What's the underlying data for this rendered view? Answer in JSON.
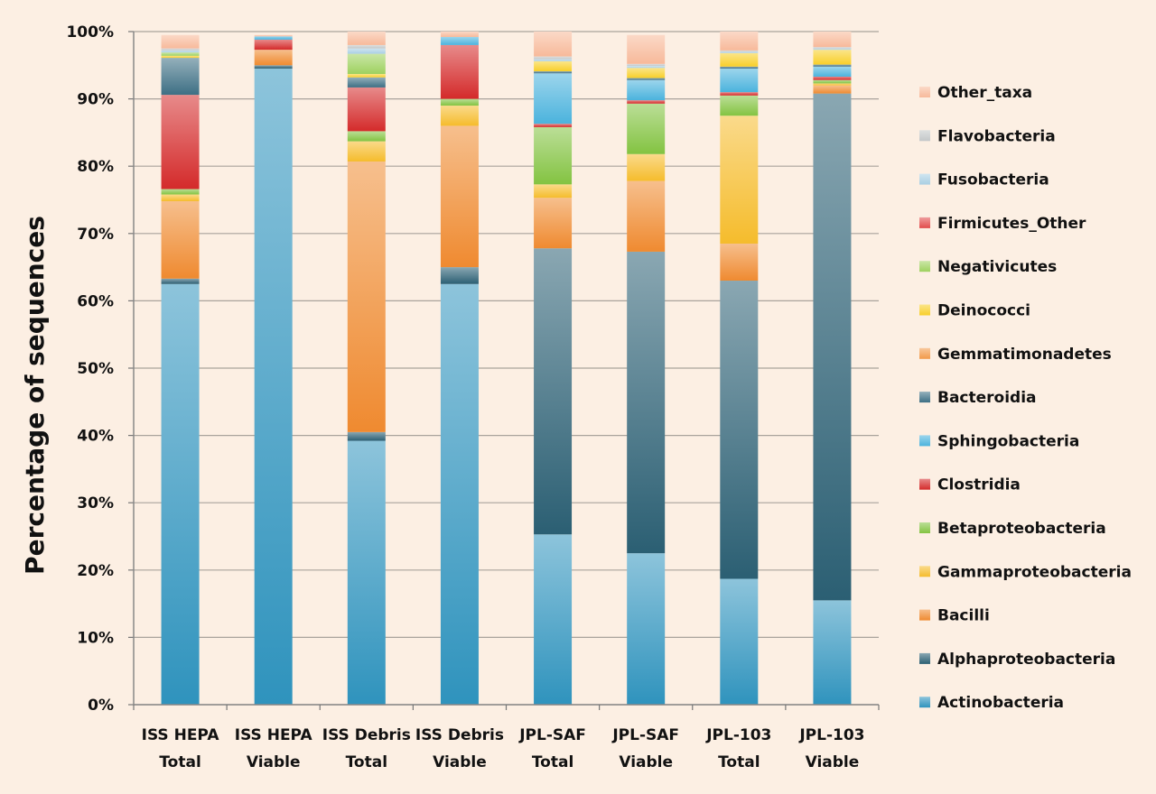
{
  "chart_data": {
    "type": "bar",
    "stacked": true,
    "ylabel": "Percentage of sequences",
    "ylim": [
      0,
      100
    ],
    "y_ticks": [
      "0%",
      "10%",
      "20%",
      "30%",
      "40%",
      "50%",
      "60%",
      "70%",
      "80%",
      "90%",
      "100%"
    ],
    "grid": true,
    "legend_position": "right",
    "categories": [
      [
        "ISS HEPA",
        "Total"
      ],
      [
        "ISS HEPA",
        "Viable"
      ],
      [
        "ISS Debris",
        "Total"
      ],
      [
        "ISS Debris",
        "Viable"
      ],
      [
        "JPL-SAF",
        "Total"
      ],
      [
        "JPL-SAF",
        "Viable"
      ],
      [
        "JPL-103",
        "Total"
      ],
      [
        "JPL-103",
        "Viable"
      ]
    ],
    "series": [
      {
        "name": "Actinobacteria",
        "color": "#2f93bd",
        "values": [
          62.5,
          94.5,
          39.2,
          62.5,
          25.3,
          22.5,
          18.7,
          15.5
        ]
      },
      {
        "name": "Alphaproteobacteria",
        "color": "#2b5f73",
        "values": [
          0.8,
          0.5,
          1.3,
          2.5,
          42.5,
          44.8,
          44.3,
          75.3
        ]
      },
      {
        "name": "Bacilli",
        "color": "#ef8a30",
        "values": [
          11.5,
          2.3,
          40.2,
          21.0,
          7.5,
          10.5,
          5.5,
          1.2
        ]
      },
      {
        "name": "Gammaproteobacteria",
        "color": "#f5bc2c",
        "values": [
          1.0,
          0,
          3.0,
          3.0,
          2.0,
          4.0,
          19.0,
          0.3
        ]
      },
      {
        "name": "Betaproteobacteria",
        "color": "#83c341",
        "values": [
          0.8,
          0,
          1.5,
          1.0,
          8.5,
          7.5,
          3.0,
          0.5
        ]
      },
      {
        "name": "Clostridia",
        "color": "#d42a2a",
        "values": [
          14.0,
          1.5,
          6.5,
          8.0,
          0.5,
          0.5,
          0.5,
          0.5
        ]
      },
      {
        "name": "Sphingobacteria",
        "color": "#4bb3dd",
        "values": [
          0,
          0.5,
          0,
          1.2,
          7.5,
          3.0,
          3.5,
          1.5
        ]
      },
      {
        "name": "Bacteroidia",
        "color": "#3d6f84",
        "values": [
          5.5,
          0,
          1.5,
          0,
          0.3,
          0.3,
          0.3,
          0.3
        ]
      },
      {
        "name": "Gemmatimonadetes",
        "color": "#f29a4a",
        "values": [
          0,
          0,
          0,
          0,
          0,
          0,
          0,
          0
        ]
      },
      {
        "name": "Deinococci",
        "color": "#f8cf2a",
        "values": [
          0.3,
          0,
          0.5,
          0,
          1.5,
          1.5,
          2.0,
          2.2
        ]
      },
      {
        "name": "Negativicutes",
        "color": "#9ed15f",
        "values": [
          0.5,
          0,
          3.0,
          0,
          0,
          0,
          0,
          0
        ]
      },
      {
        "name": "Firmicutes_Other",
        "color": "#e24b4b",
        "values": [
          0,
          0,
          0,
          0,
          0,
          0,
          0,
          0
        ]
      },
      {
        "name": "Fusobacteria",
        "color": "#a9cfe3",
        "values": [
          0.3,
          0,
          0.8,
          0,
          0.3,
          0.3,
          0.2,
          0.2
        ]
      },
      {
        "name": "Flavobacteria",
        "color": "#c3c7c8",
        "values": [
          0.3,
          0,
          0.5,
          0,
          0.4,
          0.3,
          0.2,
          0.2
        ]
      },
      {
        "name": "Other_taxa",
        "color": "#f7b99a",
        "values": [
          2.0,
          0.2,
          2.0,
          0.8,
          3.7,
          4.3,
          2.8,
          2.3
        ]
      }
    ]
  }
}
